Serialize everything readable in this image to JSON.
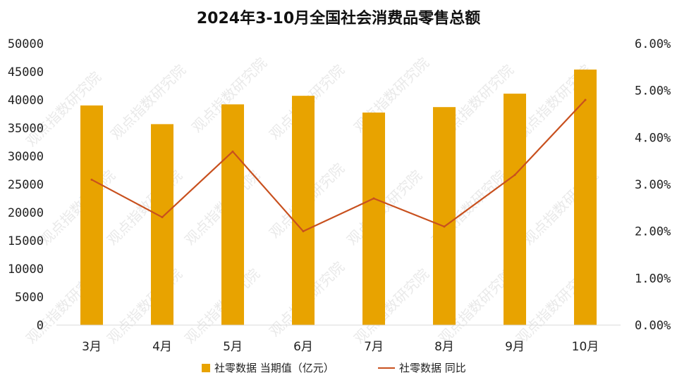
{
  "chart_data": {
    "type": "bar",
    "title": "2024年3-10月全国社会消费品零售总额",
    "categories": [
      "3月",
      "4月",
      "5月",
      "6月",
      "7月",
      "8月",
      "9月",
      "10月"
    ],
    "series": [
      {
        "name": "社零数据 当期值（亿元）",
        "type": "bar",
        "axis": "left",
        "color": "#E8A300",
        "values": [
          39020,
          35699,
          39211,
          40732,
          37757,
          38726,
          41112,
          45396
        ]
      },
      {
        "name": "社零数据 同比",
        "type": "line",
        "axis": "right",
        "color": "#C8501E",
        "values": [
          3.1,
          2.3,
          3.7,
          2.0,
          2.7,
          2.1,
          3.2,
          4.8
        ]
      }
    ],
    "ylim": [
      0,
      50000
    ],
    "yticks": [
      "0",
      "5000",
      "10000",
      "15000",
      "20000",
      "25000",
      "30000",
      "35000",
      "40000",
      "45000",
      "50000"
    ],
    "y2lim": [
      0,
      6
    ],
    "y2ticks": [
      "0.00%",
      "1.00%",
      "2.00%",
      "3.00%",
      "4.00%",
      "5.00%",
      "6.00%"
    ],
    "legend_position": "bottom",
    "grid": false
  },
  "watermark": "观点指数研究院"
}
